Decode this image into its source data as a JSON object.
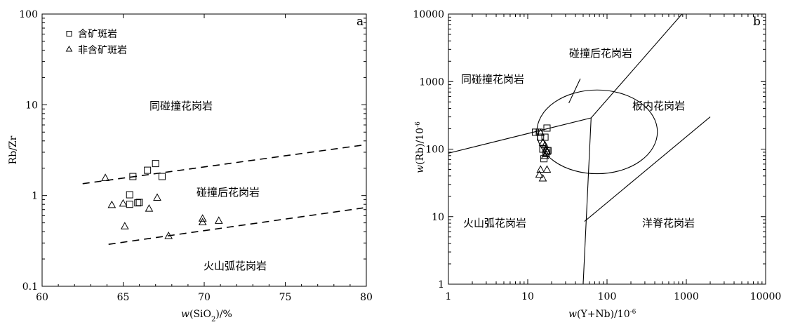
{
  "chart_data": [
    {
      "type": "scatter",
      "panel_label": "a",
      "xlabel": "w(SiO2)/%",
      "ylabel": "Rb/Zr",
      "xlim": [
        60,
        80
      ],
      "ylim": [
        0.1,
        100
      ],
      "yscale": "log",
      "x_ticks": [
        "60",
        "65",
        "70",
        "75",
        "80"
      ],
      "y_ticks": [
        "0.1",
        "1",
        "10",
        "100"
      ],
      "series": [
        {
          "name": "含矿斑岩",
          "marker": "square",
          "points": [
            [
              65.6,
              1.62
            ],
            [
              66.5,
              1.9
            ],
            [
              67.0,
              2.25
            ],
            [
              67.4,
              1.62
            ],
            [
              65.4,
              1.02
            ],
            [
              65.4,
              0.8
            ],
            [
              66.0,
              0.84
            ],
            [
              65.9,
              0.83
            ]
          ]
        },
        {
          "name": "非含矿斑岩",
          "marker": "triangle",
          "points": [
            [
              63.9,
              1.57
            ],
            [
              64.3,
              0.79
            ],
            [
              65.0,
              0.82
            ],
            [
              65.1,
              0.46
            ],
            [
              66.6,
              0.72
            ],
            [
              67.1,
              0.95
            ],
            [
              67.8,
              0.36
            ],
            [
              69.9,
              0.56
            ],
            [
              69.9,
              0.51
            ],
            [
              70.9,
              0.53
            ]
          ]
        }
      ],
      "boundaries": [
        [
          [
            62.5,
            1.35
          ],
          [
            79.8,
            3.6
          ]
        ],
        [
          [
            64.1,
            0.29
          ],
          [
            79.8,
            0.73
          ]
        ]
      ],
      "zone_labels": [
        "同碰撞花岗岩",
        "碰撞后花岗岩",
        "火山弧花岗岩"
      ]
    },
    {
      "type": "scatter",
      "panel_label": "b",
      "xlabel": "w(Y+Nb)/10-6",
      "ylabel": "w(Rb)/10-6",
      "xlim": [
        1,
        10000
      ],
      "ylim": [
        1,
        10000
      ],
      "xscale": "log",
      "yscale": "log",
      "x_ticks": [
        "1",
        "10",
        "100",
        "1000",
        "10000"
      ],
      "y_ticks": [
        "1",
        "10",
        "100",
        "1000",
        "10000"
      ],
      "series": [
        {
          "name": "含矿斑岩",
          "marker": "square",
          "points": [
            [
              12.5,
              178
            ],
            [
              14.0,
              178
            ],
            [
              14.5,
              150
            ],
            [
              17.5,
              205
            ],
            [
              16.5,
              150
            ],
            [
              15.5,
              100
            ],
            [
              17.5,
              95
            ],
            [
              18.0,
              95
            ],
            [
              16.0,
              72
            ],
            [
              17.0,
              88
            ]
          ]
        },
        {
          "name": "非含矿斑岩",
          "marker": "triangle",
          "points": [
            [
              14.5,
              175
            ],
            [
              15.5,
              125
            ],
            [
              16.5,
              115
            ],
            [
              17.0,
              100
            ],
            [
              17.5,
              92
            ],
            [
              17.0,
              85
            ],
            [
              16.5,
              80
            ],
            [
              14.5,
              50
            ],
            [
              17.5,
              50
            ],
            [
              14.0,
              42
            ],
            [
              15.5,
              37
            ]
          ]
        }
      ],
      "boundaries": [
        [
          [
            1,
            87
          ],
          [
            63,
            290
          ],
          [
            2000,
            30000
          ]
        ],
        [
          [
            63,
            290
          ],
          [
            50,
            1
          ]
        ],
        [
          [
            52,
            8.5
          ],
          [
            2000,
            300
          ]
        ]
      ],
      "circle": {
        "center": [
          75,
          180
        ],
        "rx_decades": 0.76,
        "ry_decades": 0.62
      },
      "zone_labels": [
        "碰撞后花岗岩",
        "同碰撞花岗岩",
        "板内花岗岩",
        "火山弧花岗岩",
        "洋脊花岗岩"
      ]
    }
  ]
}
